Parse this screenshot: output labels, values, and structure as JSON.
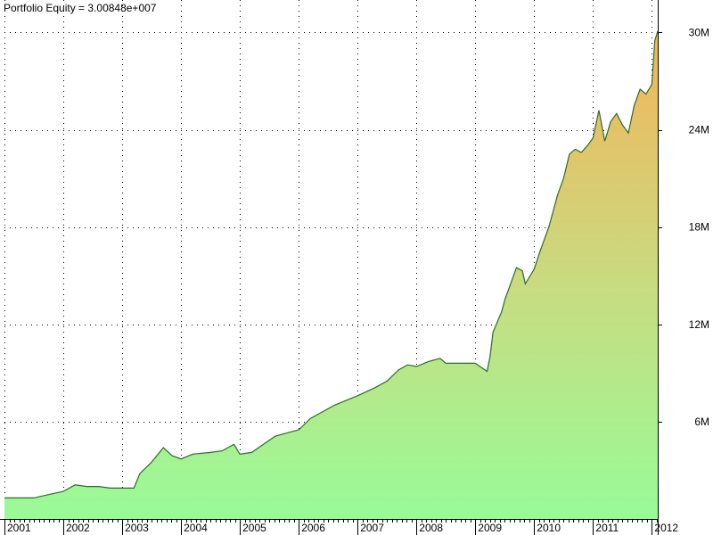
{
  "chart_data": {
    "type": "area",
    "title": "Portfolio Equity = 3.00848e+007",
    "xlabel": "",
    "ylabel": "",
    "x_tick_labels": [
      "2001",
      "2002",
      "2003",
      "2004",
      "2005",
      "2006",
      "2007",
      "2008",
      "2009",
      "2010",
      "2011",
      "2012"
    ],
    "y_tick_values": [
      6000000,
      12000000,
      18000000,
      24000000,
      30000000
    ],
    "y_tick_labels": [
      "6M",
      "12M",
      "18M",
      "24M",
      "30M"
    ],
    "xlim": [
      2001.0,
      2012.1
    ],
    "ylim": [
      0,
      32000000
    ],
    "grid": true,
    "y_axis_position": "right",
    "colors": {
      "fill_bottom": "#98fb98",
      "fill_top": "#f4b45a",
      "line": "#2e6b2e",
      "grid": "#000000"
    },
    "series": [
      {
        "x": [
          2001.0,
          2001.5,
          2001.75,
          2002.0,
          2002.2,
          2002.4,
          2002.6,
          2002.8,
          2003.0,
          2003.2,
          2003.3,
          2003.5,
          2003.7,
          2003.85,
          2004.0,
          2004.2,
          2004.5,
          2004.7,
          2004.9,
          2005.0,
          2005.2,
          2005.4,
          2005.6,
          2005.8,
          2006.0,
          2006.2,
          2006.4,
          2006.6,
          2006.8,
          2007.0,
          2007.3,
          2007.5,
          2007.7,
          2007.85,
          2008.0,
          2008.2,
          2008.4,
          2008.5,
          2008.7,
          2009.0,
          2009.2,
          2009.25,
          2009.3,
          2009.45,
          2009.5,
          2009.6,
          2009.7,
          2009.8,
          2009.85,
          2010.0,
          2010.1,
          2010.15,
          2010.25,
          2010.4,
          2010.5,
          2010.6,
          2010.7,
          2010.8,
          2010.9,
          2011.0,
          2011.1,
          2011.2,
          2011.3,
          2011.4,
          2011.5,
          2011.6,
          2011.7,
          2011.8,
          2011.9,
          2012.0,
          2012.05,
          2012.1
        ],
        "values": [
          1300000,
          1300000,
          1500000,
          1700000,
          2100000,
          2000000,
          2000000,
          1900000,
          1900000,
          1900000,
          2800000,
          3500000,
          4400000,
          3900000,
          3700000,
          4000000,
          4100000,
          4200000,
          4600000,
          4000000,
          4100000,
          4600000,
          5100000,
          5300000,
          5500000,
          6200000,
          6600000,
          7000000,
          7300000,
          7600000,
          8100000,
          8500000,
          9200000,
          9500000,
          9400000,
          9700000,
          9900000,
          9600000,
          9600000,
          9600000,
          9100000,
          10000000,
          11500000,
          12800000,
          13500000,
          14500000,
          15500000,
          15300000,
          14500000,
          15400000,
          16500000,
          17000000,
          18000000,
          20000000,
          21000000,
          22500000,
          22800000,
          22600000,
          23000000,
          23500000,
          25200000,
          23300000,
          24500000,
          25000000,
          24300000,
          23800000,
          25500000,
          26500000,
          26200000,
          26800000,
          29500000,
          30084800
        ]
      }
    ]
  }
}
